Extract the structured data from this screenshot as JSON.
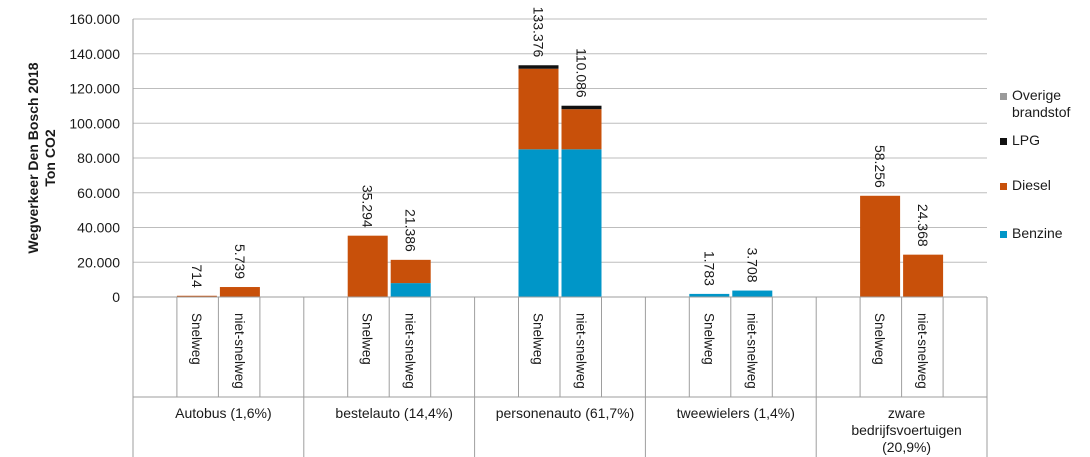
{
  "chart_data": {
    "type": "bar",
    "stacked": true,
    "ylabel_lines": [
      "Wegverkeer Den Bosch 2018",
      "Ton CO2"
    ],
    "ylim": [
      0,
      160000
    ],
    "yticks": [
      0,
      20000,
      40000,
      60000,
      80000,
      100000,
      120000,
      140000,
      160000
    ],
    "ytick_labels": [
      "0",
      "20.000",
      "40.000",
      "60.000",
      "80.000",
      "100.000",
      "120.000",
      "140.000",
      "160.000"
    ],
    "grid": true,
    "legend_position": "right",
    "groups": [
      {
        "label_lines": [
          "Autobus (1,6%)"
        ]
      },
      {
        "label_lines": [
          "bestelauto (14,4%)"
        ]
      },
      {
        "label_lines": [
          "personenauto (61,7%)"
        ]
      },
      {
        "label_lines": [
          "tweewielers (1,4%)"
        ]
      },
      {
        "label_lines": [
          "zware",
          "bedrijfsvoertuigen",
          "(20,9%)"
        ]
      }
    ],
    "subcategories": [
      "Snelweg",
      "niet-snelweg"
    ],
    "series": [
      {
        "name": "Benzine",
        "color": "#0096c8",
        "values": [
          [
            0,
            0
          ],
          [
            0,
            8000
          ],
          [
            85000,
            85000
          ],
          [
            1783,
            3708
          ],
          [
            0,
            0
          ]
        ]
      },
      {
        "name": "Diesel",
        "color": "#c8500a",
        "values": [
          [
            714,
            5739
          ],
          [
            35294,
            13386
          ],
          [
            46376,
            23086
          ],
          [
            0,
            0
          ],
          [
            58256,
            24368
          ]
        ]
      },
      {
        "name": "LPG",
        "color": "#111111",
        "values": [
          [
            0,
            0
          ],
          [
            0,
            0
          ],
          [
            2000,
            2000
          ],
          [
            0,
            0
          ],
          [
            0,
            0
          ]
        ]
      },
      {
        "name": "Overige brandstof",
        "color": "#9a9a9a",
        "values": [
          [
            0,
            0
          ],
          [
            0,
            0
          ],
          [
            0,
            0
          ],
          [
            0,
            0
          ],
          [
            0,
            0
          ]
        ]
      }
    ],
    "totals": [
      [
        714,
        5739
      ],
      [
        35294,
        21386
      ],
      [
        133376,
        110086
      ],
      [
        1783,
        3708
      ],
      [
        58256,
        24368
      ]
    ],
    "total_labels": [
      [
        "714",
        "5.739"
      ],
      [
        "35.294",
        "21.386"
      ],
      [
        "133.376",
        "110.086"
      ],
      [
        "1.783",
        "3.708"
      ],
      [
        "58.256",
        "24.368"
      ]
    ],
    "legend_order": [
      "Overige brandstof",
      "LPG",
      "Diesel",
      "Benzine"
    ],
    "legend_label_lines": {
      "Overige brandstof": [
        "Overige",
        "brandstof"
      ],
      "LPG": [
        "LPG"
      ],
      "Diesel": [
        "Diesel"
      ],
      "Benzine": [
        "Benzine"
      ]
    }
  }
}
